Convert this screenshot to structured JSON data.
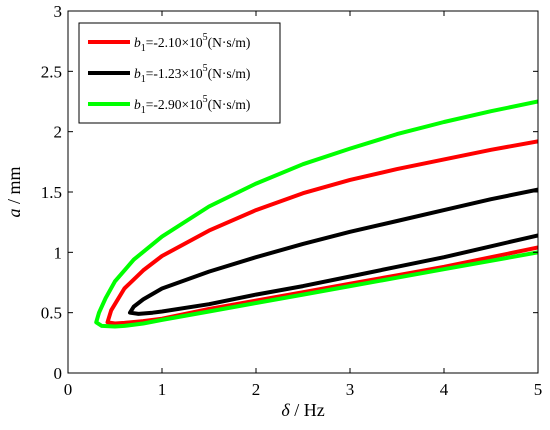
{
  "chart_data": {
    "type": "line",
    "xlabel": {
      "symbol": "δ",
      "unit": " / Hz"
    },
    "ylabel": {
      "symbol": "a",
      "unit": " / mm"
    },
    "xlim": [
      0,
      5
    ],
    "ylim": [
      0,
      3
    ],
    "xticks": [
      0,
      1,
      2,
      3,
      4,
      5
    ],
    "yticks": [
      0,
      0.5,
      1,
      1.5,
      2,
      2.5,
      3
    ],
    "xtick_labels": [
      "0",
      "1",
      "2",
      "3",
      "4",
      "5"
    ],
    "ytick_labels": [
      "0",
      "0.5",
      "1",
      "1.5",
      "2",
      "2.5",
      "3"
    ],
    "grid": false,
    "legend_position": "top-left",
    "series": [
      {
        "legend": {
          "sym": "b",
          "sub": "1",
          "coef": "=-2.10×10",
          "exp": "5",
          "unit": "(N·s/m)"
        },
        "color": "#ff0000",
        "vertex": [
          0.42,
          0.42
        ],
        "upper": [
          [
            0.42,
            0.42
          ],
          [
            0.46,
            0.52
          ],
          [
            0.6,
            0.7
          ],
          [
            0.8,
            0.85
          ],
          [
            1.0,
            0.97
          ],
          [
            1.5,
            1.18
          ],
          [
            2.0,
            1.35
          ],
          [
            2.5,
            1.49
          ],
          [
            3.0,
            1.6
          ],
          [
            3.5,
            1.69
          ],
          [
            4.0,
            1.77
          ],
          [
            4.5,
            1.85
          ],
          [
            5.0,
            1.92
          ]
        ],
        "lower": [
          [
            0.42,
            0.42
          ],
          [
            0.5,
            0.41
          ],
          [
            0.6,
            0.415
          ],
          [
            0.8,
            0.43
          ],
          [
            1.0,
            0.45
          ],
          [
            1.5,
            0.53
          ],
          [
            2.0,
            0.6
          ],
          [
            2.5,
            0.67
          ],
          [
            3.0,
            0.74
          ],
          [
            3.5,
            0.81
          ],
          [
            4.0,
            0.88
          ],
          [
            4.5,
            0.96
          ],
          [
            5.0,
            1.04
          ]
        ]
      },
      {
        "legend": {
          "sym": "b",
          "sub": "1",
          "coef": "=-1.23×10",
          "exp": "5",
          "unit": "(N·s/m)"
        },
        "color": "#000000",
        "vertex": [
          0.66,
          0.5
        ],
        "upper": [
          [
            0.66,
            0.5
          ],
          [
            0.7,
            0.55
          ],
          [
            0.8,
            0.61
          ],
          [
            1.0,
            0.7
          ],
          [
            1.5,
            0.84
          ],
          [
            2.0,
            0.96
          ],
          [
            2.5,
            1.07
          ],
          [
            3.0,
            1.17
          ],
          [
            3.5,
            1.26
          ],
          [
            4.0,
            1.35
          ],
          [
            4.5,
            1.44
          ],
          [
            5.0,
            1.52
          ]
        ],
        "lower": [
          [
            0.66,
            0.5
          ],
          [
            0.75,
            0.49
          ],
          [
            0.9,
            0.5
          ],
          [
            1.0,
            0.51
          ],
          [
            1.5,
            0.57
          ],
          [
            2.0,
            0.65
          ],
          [
            2.5,
            0.72
          ],
          [
            3.0,
            0.8
          ],
          [
            3.5,
            0.88
          ],
          [
            4.0,
            0.96
          ],
          [
            4.5,
            1.05
          ],
          [
            5.0,
            1.14
          ]
        ]
      },
      {
        "legend": {
          "sym": "b",
          "sub": "1",
          "coef": "=-2.90×10",
          "exp": "5",
          "unit": "(N·s/m)"
        },
        "color": "#00ff00",
        "vertex": [
          0.3,
          0.42
        ],
        "upper": [
          [
            0.3,
            0.42
          ],
          [
            0.33,
            0.5
          ],
          [
            0.4,
            0.62
          ],
          [
            0.5,
            0.76
          ],
          [
            0.7,
            0.94
          ],
          [
            1.0,
            1.13
          ],
          [
            1.5,
            1.38
          ],
          [
            2.0,
            1.57
          ],
          [
            2.5,
            1.73
          ],
          [
            3.0,
            1.86
          ],
          [
            3.5,
            1.98
          ],
          [
            4.0,
            2.08
          ],
          [
            4.5,
            2.17
          ],
          [
            5.0,
            2.25
          ]
        ],
        "lower": [
          [
            0.3,
            0.42
          ],
          [
            0.36,
            0.39
          ],
          [
            0.5,
            0.385
          ],
          [
            0.6,
            0.39
          ],
          [
            0.8,
            0.41
          ],
          [
            1.0,
            0.44
          ],
          [
            1.5,
            0.51
          ],
          [
            2.0,
            0.58
          ],
          [
            2.5,
            0.65
          ],
          [
            3.0,
            0.72
          ],
          [
            3.5,
            0.79
          ],
          [
            4.0,
            0.86
          ],
          [
            4.5,
            0.93
          ],
          [
            5.0,
            1.0
          ]
        ]
      }
    ]
  }
}
